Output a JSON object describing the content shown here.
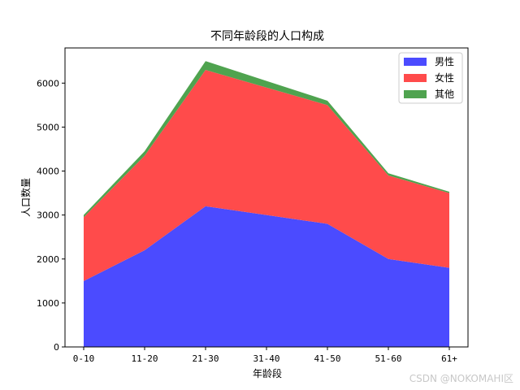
{
  "chart_data": {
    "type": "area",
    "stacked": true,
    "title": "不同年龄段的人口构成",
    "xlabel": "年龄段",
    "ylabel": "人口数量",
    "categories": [
      "0-10",
      "11-20",
      "21-30",
      "31-40",
      "41-50",
      "51-60",
      "61+"
    ],
    "series": [
      {
        "name": "男性",
        "color": "#4b4bff",
        "values": [
          1500,
          2200,
          3200,
          3000,
          2800,
          2000,
          1800
        ]
      },
      {
        "name": "女性",
        "color": "#ff4b4b",
        "values": [
          1450,
          2150,
          3100,
          2900,
          2700,
          1900,
          1700
        ]
      },
      {
        "name": "其他",
        "color": "#4fa34f",
        "values": [
          50,
          100,
          200,
          150,
          100,
          50,
          30
        ]
      }
    ],
    "ylim": [
      0,
      6800
    ],
    "yticks": [
      0,
      1000,
      2000,
      3000,
      4000,
      5000,
      6000
    ],
    "grid": false,
    "legend_position": "upper right"
  },
  "watermark": "CSDN @NOKOMAHI区"
}
